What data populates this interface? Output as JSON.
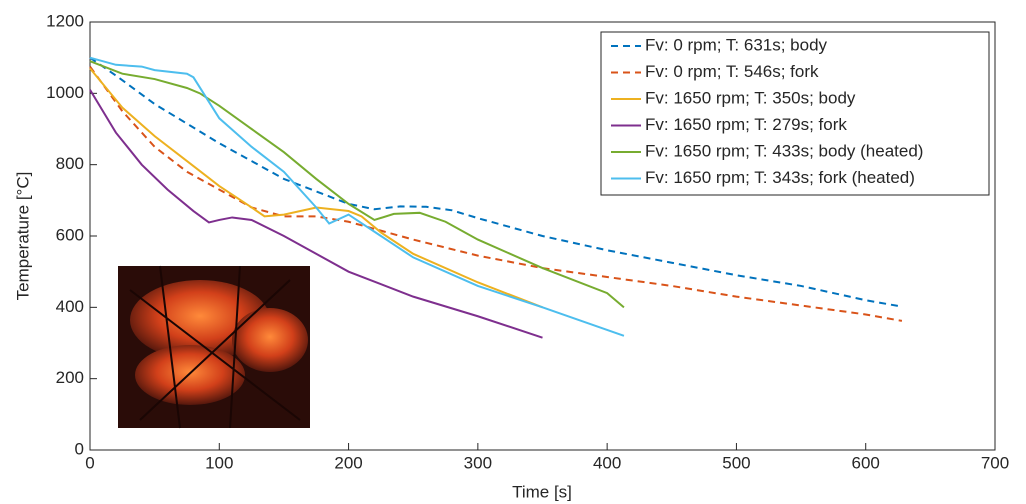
{
  "chart_data": {
    "type": "line",
    "xlabel": "Time [s]",
    "ylabel": "Temperature [°C]",
    "xlim": [
      0,
      700
    ],
    "xticks": [
      0,
      100,
      200,
      300,
      400,
      500,
      600,
      700
    ],
    "ylim": [
      0,
      1200
    ],
    "yticks": [
      0,
      200,
      400,
      600,
      800,
      1000,
      1200
    ],
    "grid": false,
    "legend": "top-right",
    "series": [
      {
        "name": "Fv: 0 rpm; T: 631s; body",
        "color": "#0072BD",
        "dashed": true,
        "x": [
          0,
          20,
          50,
          100,
          150,
          200,
          220,
          240,
          260,
          280,
          300,
          350,
          400,
          450,
          500,
          550,
          600,
          628
        ],
        "values": [
          1100,
          1050,
          970,
          860,
          760,
          690,
          675,
          683,
          682,
          672,
          650,
          600,
          560,
          525,
          490,
          460,
          420,
          402
        ]
      },
      {
        "name": "Fv: 0 rpm; T: 546s; fork",
        "color": "#D95319",
        "dashed": true,
        "x": [
          0,
          25,
          50,
          75,
          100,
          125,
          150,
          175,
          200,
          250,
          300,
          350,
          400,
          450,
          500,
          550,
          600,
          628
        ],
        "values": [
          1075,
          950,
          850,
          780,
          730,
          680,
          655,
          655,
          640,
          590,
          545,
          510,
          485,
          460,
          430,
          405,
          380,
          362
        ]
      },
      {
        "name": "Fv: 1650 rpm; T: 350s; body",
        "color": "#EDB120",
        "dashed": false,
        "x": [
          0,
          25,
          50,
          75,
          100,
          125,
          135,
          150,
          175,
          200,
          210,
          225,
          250,
          300,
          350
        ],
        "values": [
          1070,
          960,
          880,
          810,
          740,
          680,
          655,
          660,
          680,
          670,
          655,
          610,
          550,
          470,
          400
        ]
      },
      {
        "name": "Fv: 1650 rpm; T: 279s; fork",
        "color": "#7E2F8E",
        "dashed": false,
        "x": [
          0,
          20,
          40,
          60,
          80,
          92,
          100,
          110,
          125,
          150,
          200,
          250,
          300,
          350
        ],
        "values": [
          1010,
          890,
          800,
          730,
          670,
          638,
          645,
          652,
          645,
          600,
          500,
          430,
          375,
          315
        ]
      },
      {
        "name": "Fv: 1650 rpm; T: 433s; body (heated)",
        "color": "#77AC30",
        "dashed": false,
        "x": [
          0,
          25,
          50,
          75,
          85,
          100,
          125,
          150,
          175,
          200,
          220,
          235,
          255,
          275,
          300,
          350,
          400,
          413
        ],
        "values": [
          1090,
          1055,
          1040,
          1015,
          1000,
          965,
          900,
          835,
          760,
          690,
          645,
          662,
          665,
          640,
          590,
          510,
          440,
          400
        ]
      },
      {
        "name": "Fv: 1650 rpm; T: 343s; fork (heated)",
        "color": "#4DBEEE",
        "dashed": false,
        "x": [
          0,
          20,
          40,
          50,
          75,
          80,
          100,
          125,
          150,
          175,
          185,
          200,
          225,
          250,
          300,
          350,
          413
        ],
        "values": [
          1100,
          1080,
          1075,
          1065,
          1055,
          1045,
          930,
          850,
          780,
          680,
          635,
          660,
          600,
          540,
          460,
          400,
          320
        ]
      }
    ]
  }
}
